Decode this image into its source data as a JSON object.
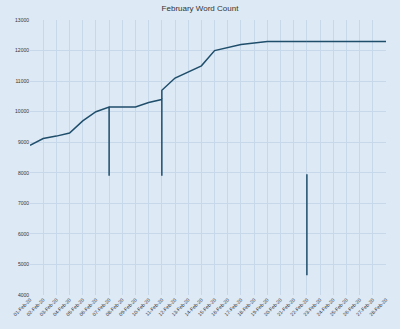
{
  "chart_data": {
    "type": "line",
    "title": "February Word Count",
    "categories": [
      "01-Feb-20",
      "02-Feb-20",
      "03-Feb-20",
      "04-Feb-20",
      "05-Feb-20",
      "06-Feb-20",
      "07-Feb-20",
      "07-Feb-20",
      "07-Feb-20",
      "08-Feb-20",
      "09-Feb-20",
      "10-Feb-20",
      "11-Feb-20",
      "11-Feb-20",
      "11-Feb-20",
      "12-Feb-20",
      "13-Feb-20",
      "14-Feb-20",
      "15-Feb-20",
      "16-Feb-20",
      "17-Feb-20",
      "18-Feb-20",
      "19-Feb-20",
      "20-Feb-20",
      "21-Feb-20",
      "22-Feb-20",
      "22-Feb-20",
      "22-Feb-20",
      "22-Feb-20",
      "22-Feb-20",
      "22-Feb-20",
      "23-Feb-20",
      "24-Feb-20",
      "25-Feb-20",
      "26-Feb-20",
      "27-Feb-20",
      "28-Feb-20"
    ],
    "values": [
      8900,
      9120,
      9200,
      9300,
      9700,
      10000,
      10150,
      7900,
      10150,
      10150,
      10150,
      10300,
      10400,
      7900,
      10700,
      11100,
      11300,
      11500,
      12000,
      12100,
      12200,
      12250,
      12300,
      12300,
      12300,
      12300,
      null,
      7950,
      4650,
      null,
      12300,
      12300,
      12300,
      12300,
      12300,
      12300,
      12300
    ],
    "color": "#1f4e6b",
    "ylim": [
      4000,
      13000
    ],
    "yticks": [
      4000,
      5000,
      6000,
      7000,
      8000,
      9000,
      10000,
      11000,
      12000,
      13000
    ],
    "grid": true
  }
}
